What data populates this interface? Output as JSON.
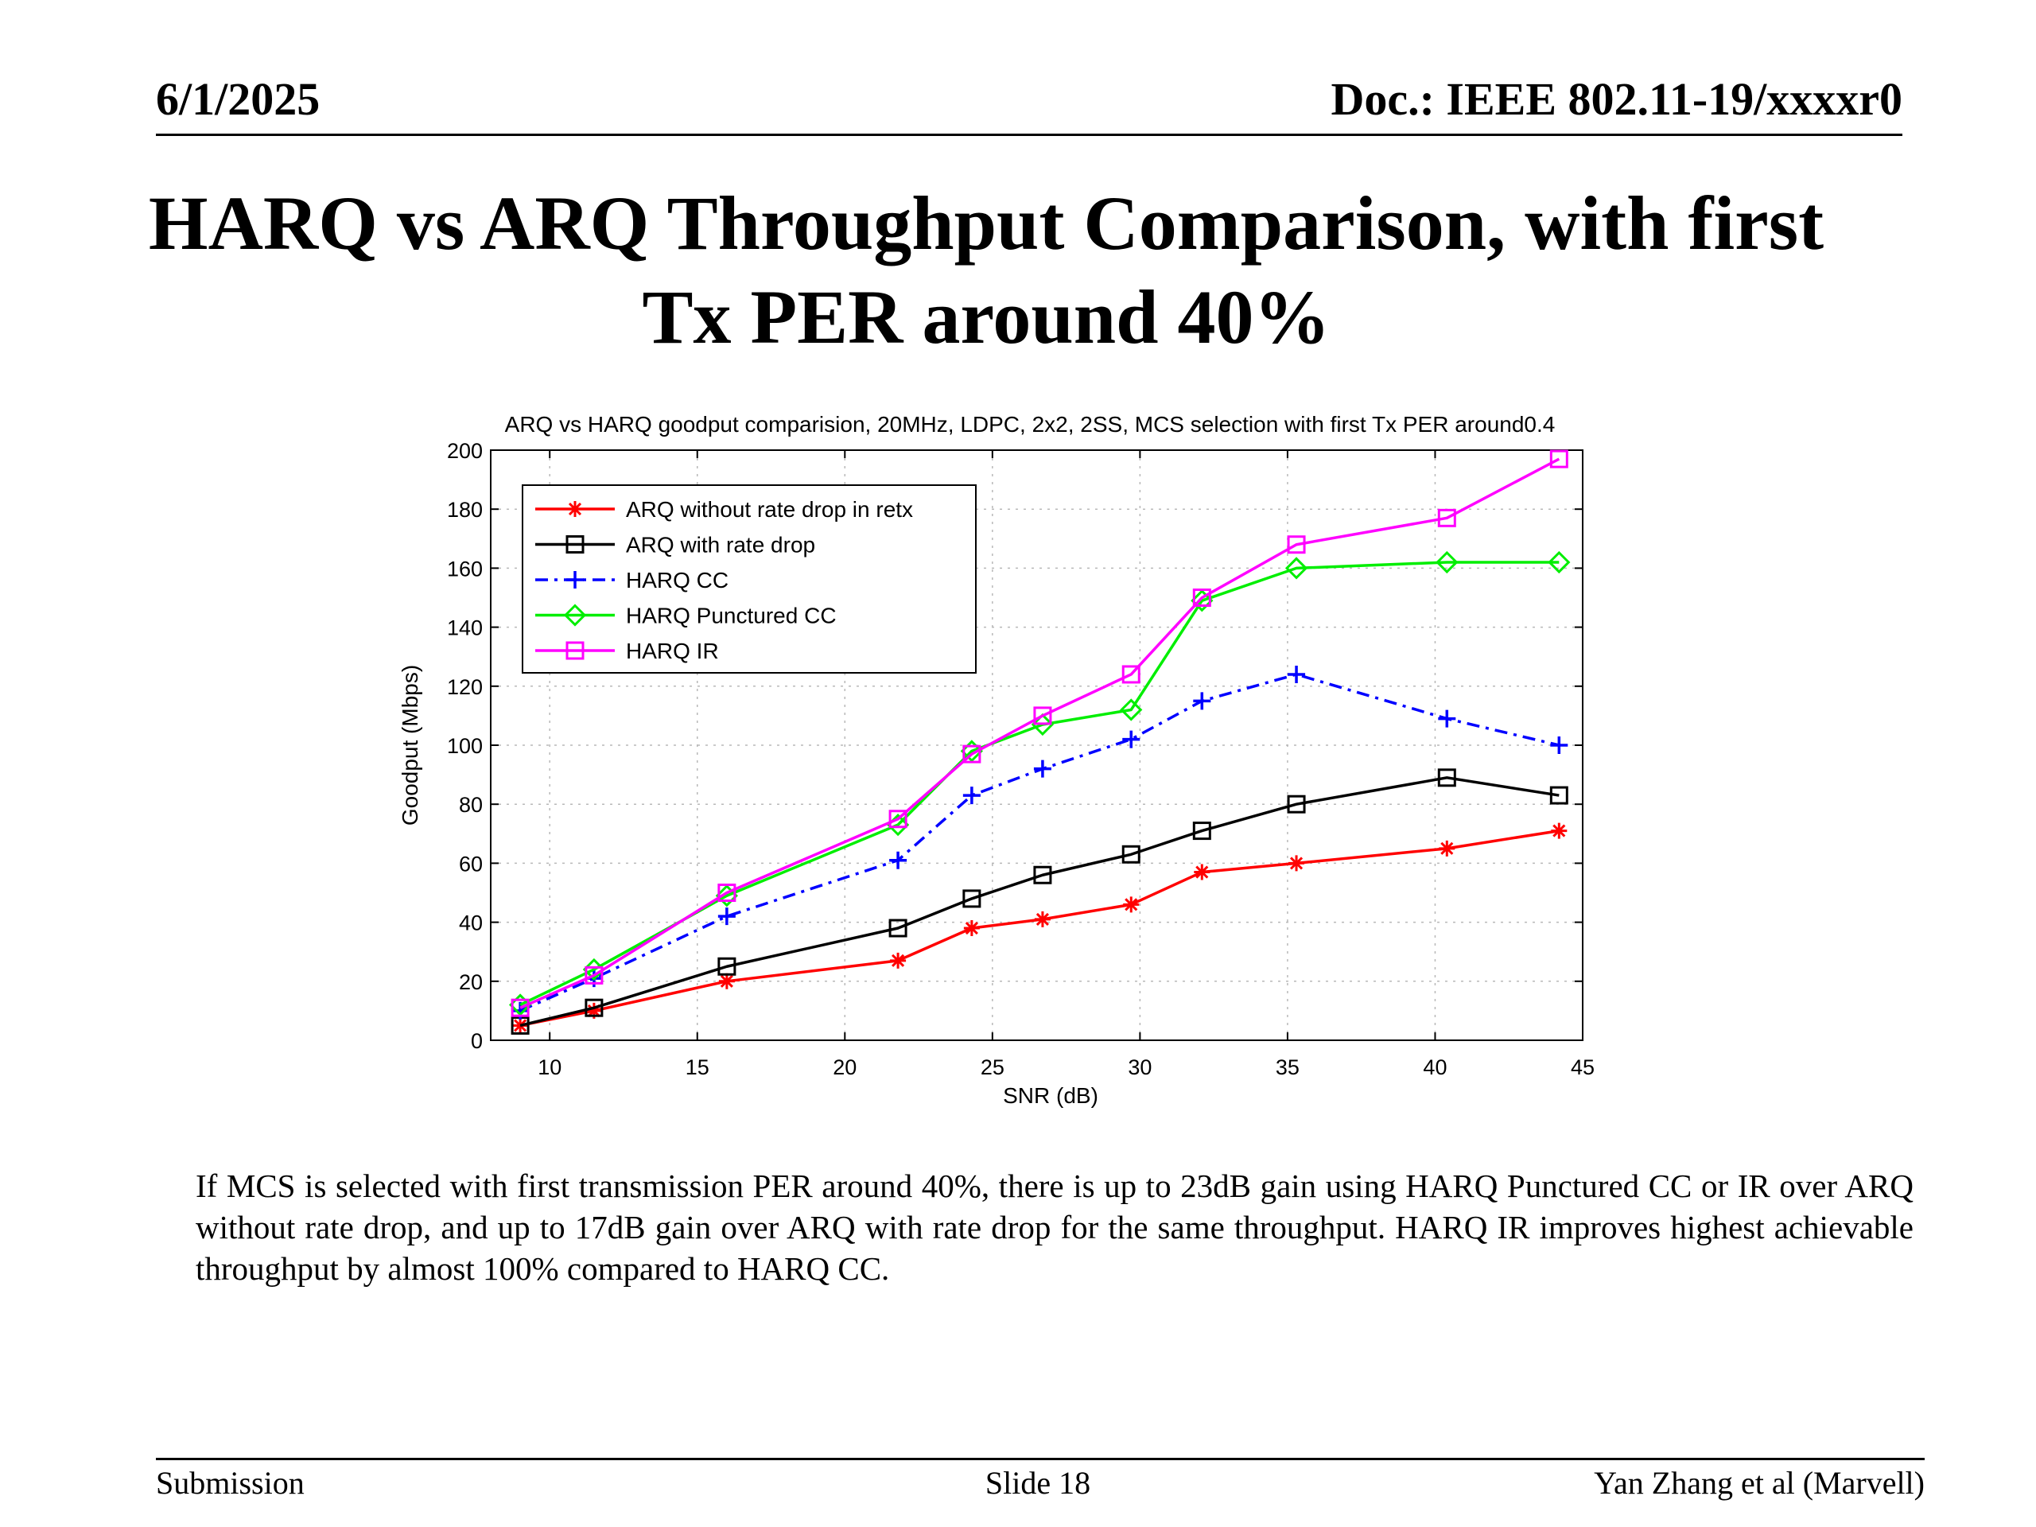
{
  "header": {
    "date": "6/1/2025",
    "doc": "Doc.: IEEE 802.11-19/xxxxr0"
  },
  "slide": {
    "title_line1": "HARQ vs ARQ Throughput Comparison, with first",
    "title_line2": "Tx PER around 40%",
    "body": "If MCS is selected with first transmission PER around 40%, there is up to 23dB gain using HARQ Punctured CC or IR over ARQ without rate drop, and up to 17dB gain over ARQ with rate drop for the same throughput. HARQ IR improves highest achievable throughput by almost 100% compared to HARQ CC."
  },
  "footer": {
    "left": "Submission",
    "center": "Slide 18",
    "right": "Yan Zhang et al (Marvell)"
  },
  "chart_data": {
    "type": "line",
    "title": "ARQ vs HARQ goodput comparision, 20MHz, LDPC, 2x2, 2SS, MCS selection with first Tx PER around0.4",
    "xlabel": "SNR (dB)",
    "ylabel": "Goodput (Mbps)",
    "xlim": [
      8,
      45
    ],
    "ylim": [
      0,
      200
    ],
    "xticks": [
      10,
      15,
      20,
      25,
      30,
      35,
      40,
      45
    ],
    "yticks": [
      0,
      20,
      40,
      60,
      80,
      100,
      120,
      140,
      160,
      180,
      200
    ],
    "grid": true,
    "legend_position": "top-left",
    "series": [
      {
        "name": "ARQ without rate drop in retx",
        "color": "#ff0000",
        "dash": "solid",
        "marker": "star",
        "x": [
          9,
          11.5,
          16,
          21.8,
          24.3,
          26.7,
          29.7,
          32.1,
          35.3,
          40.4,
          44.2
        ],
        "y": [
          5,
          10,
          20,
          27,
          38,
          41,
          46,
          57,
          60,
          65,
          71
        ]
      },
      {
        "name": "ARQ with rate drop",
        "color": "#000000",
        "dash": "solid",
        "marker": "square",
        "x": [
          9,
          11.5,
          16,
          21.8,
          24.3,
          26.7,
          29.7,
          32.1,
          35.3,
          40.4,
          44.2
        ],
        "y": [
          5,
          11,
          25,
          38,
          48,
          56,
          63,
          71,
          80,
          89,
          83
        ]
      },
      {
        "name": "HARQ CC",
        "color": "#0000ff",
        "dash": "dashdot",
        "marker": "plus",
        "x": [
          9,
          11.5,
          16,
          21.8,
          24.3,
          26.7,
          29.7,
          32.1,
          35.3,
          40.4,
          44.2
        ],
        "y": [
          10,
          21,
          42,
          61,
          83,
          92,
          102,
          115,
          124,
          109,
          100
        ]
      },
      {
        "name": "HARQ Punctured CC",
        "color": "#00ee00",
        "dash": "solid",
        "marker": "diamond",
        "x": [
          9,
          11.5,
          16,
          21.8,
          24.3,
          26.7,
          29.7,
          32.1,
          35.3,
          40.4,
          44.2
        ],
        "y": [
          12,
          24,
          49,
          73,
          98,
          107,
          112,
          149,
          160,
          162,
          162
        ]
      },
      {
        "name": "HARQ IR",
        "color": "#ff00ff",
        "dash": "solid",
        "marker": "square",
        "x": [
          9,
          11.5,
          16,
          21.8,
          24.3,
          26.7,
          29.7,
          32.1,
          35.3,
          40.4,
          44.2
        ],
        "y": [
          11,
          22,
          50,
          75,
          97,
          110,
          124,
          150,
          168,
          177,
          197
        ]
      }
    ]
  }
}
